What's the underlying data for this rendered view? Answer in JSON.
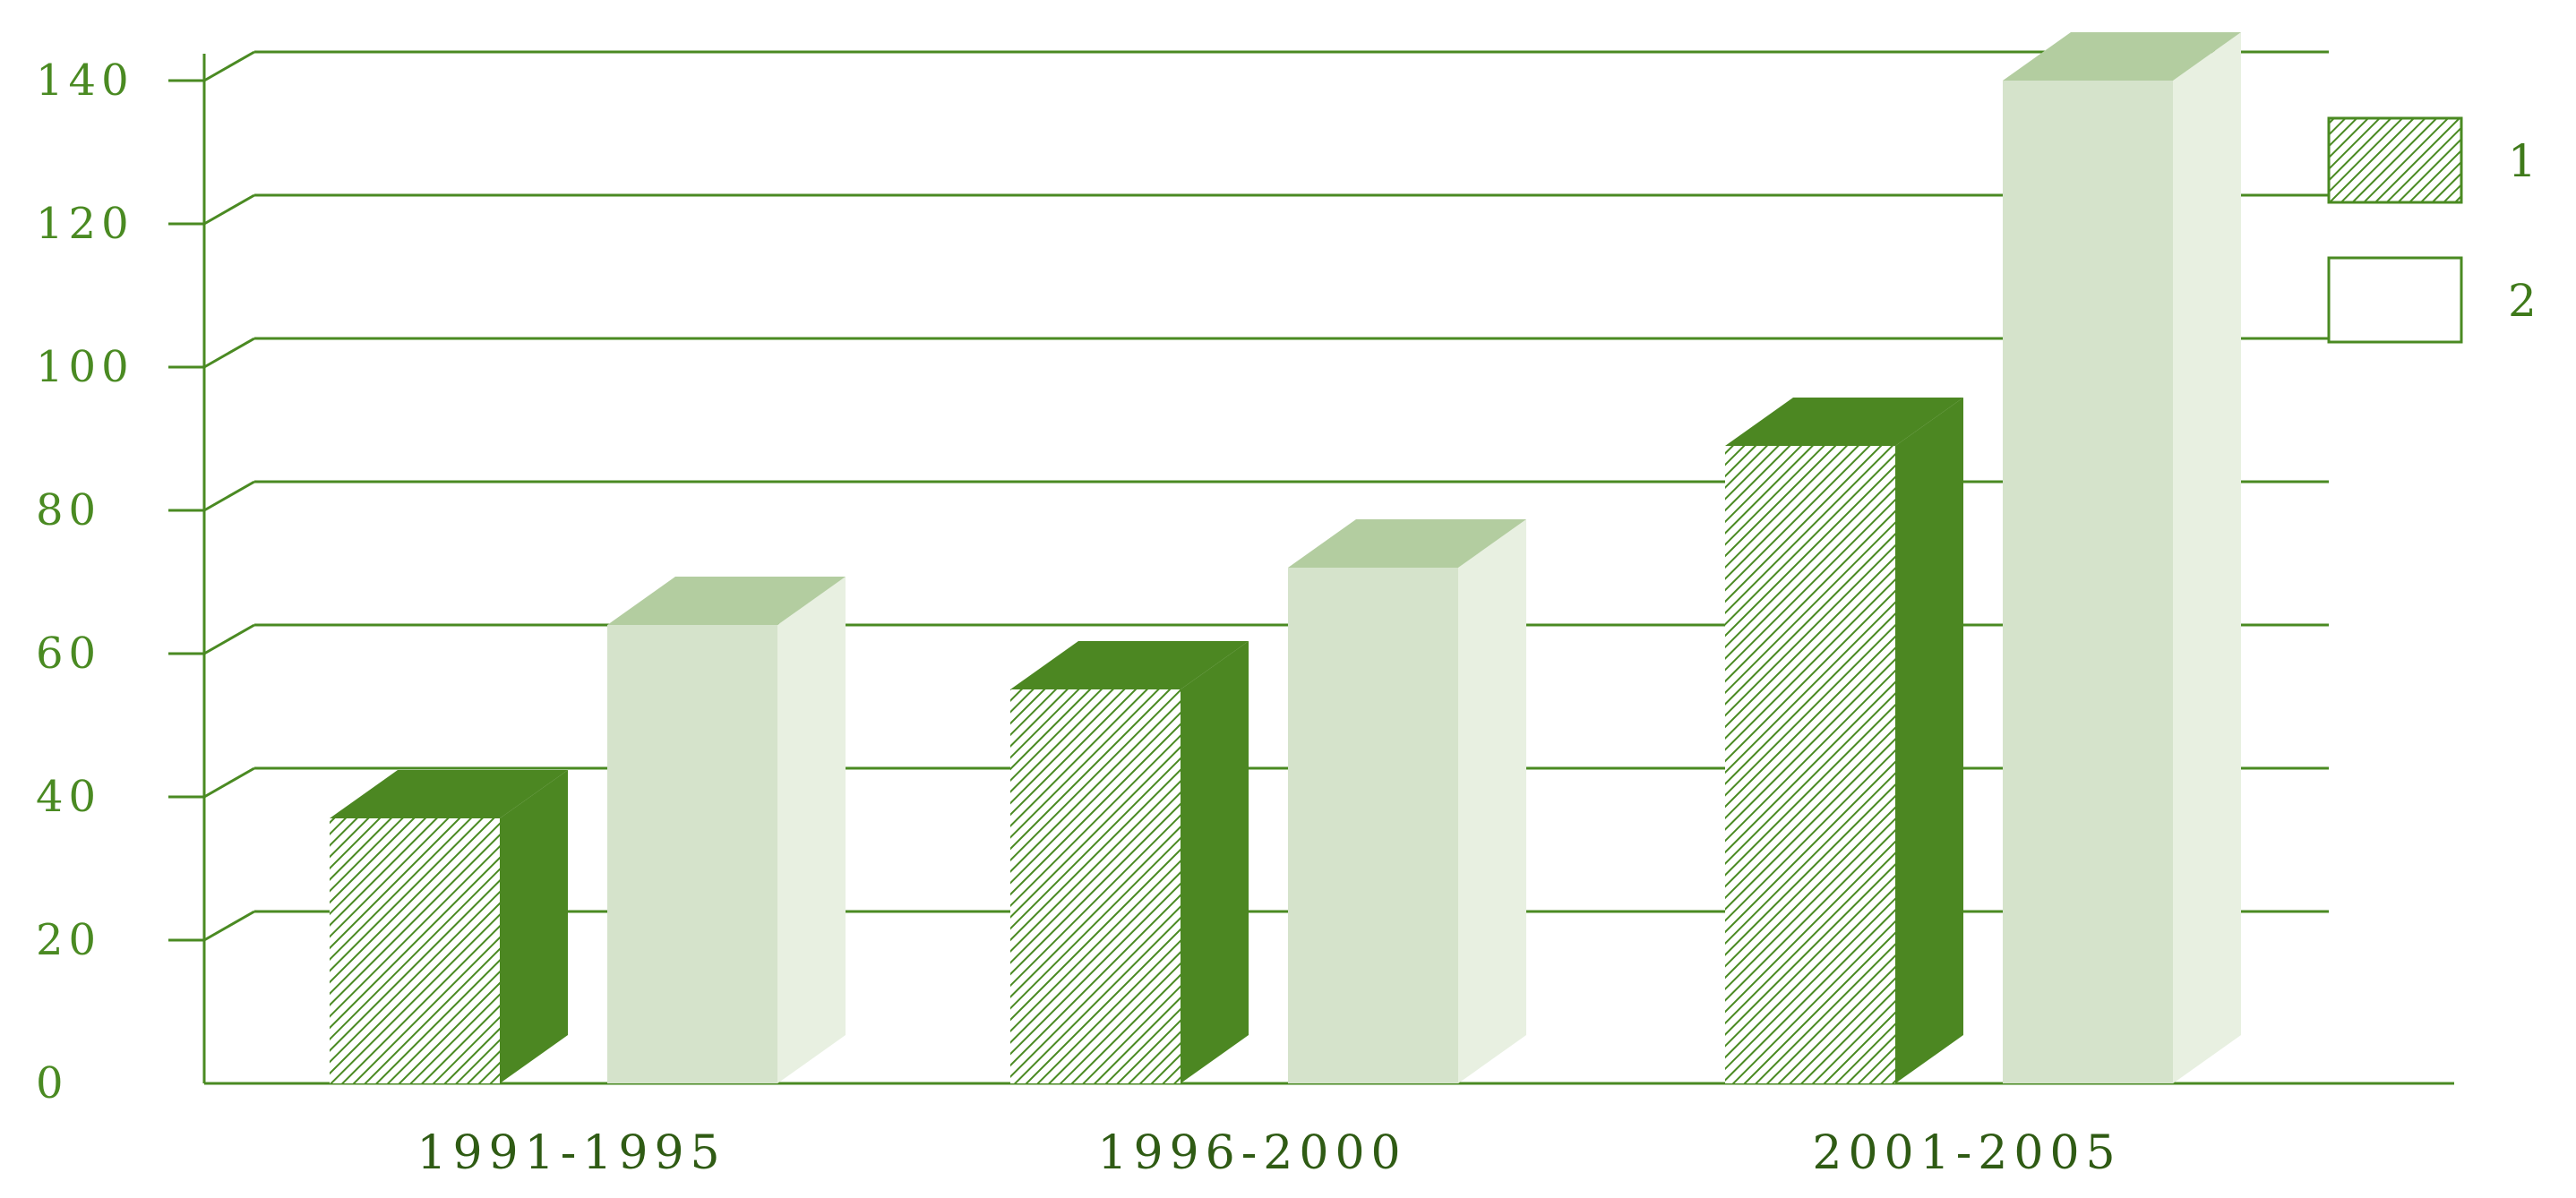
{
  "chart_data": {
    "type": "bar",
    "categories": [
      "1991-1995",
      "1996-2000",
      "2001-2005"
    ],
    "series": [
      {
        "name": "1",
        "values": [
          37,
          55,
          89
        ]
      },
      {
        "name": "2",
        "values": [
          64,
          72,
          140
        ]
      }
    ],
    "ylim": [
      0,
      140
    ],
    "yticks": [
      "0",
      "20",
      "40",
      "60",
      "80",
      "100",
      "120",
      "140"
    ],
    "grid": true,
    "legend_position": "top-right",
    "three_d": true,
    "colors": {
      "axis": "#4a8a22",
      "series1_front": "#ffffff",
      "series1_hatch": "#4a8a22",
      "series1_side": "#4c8722",
      "series2_front": "#d5e3cb",
      "series2_top": "#b3cda0",
      "series2_side": "#e8f0e1"
    }
  }
}
